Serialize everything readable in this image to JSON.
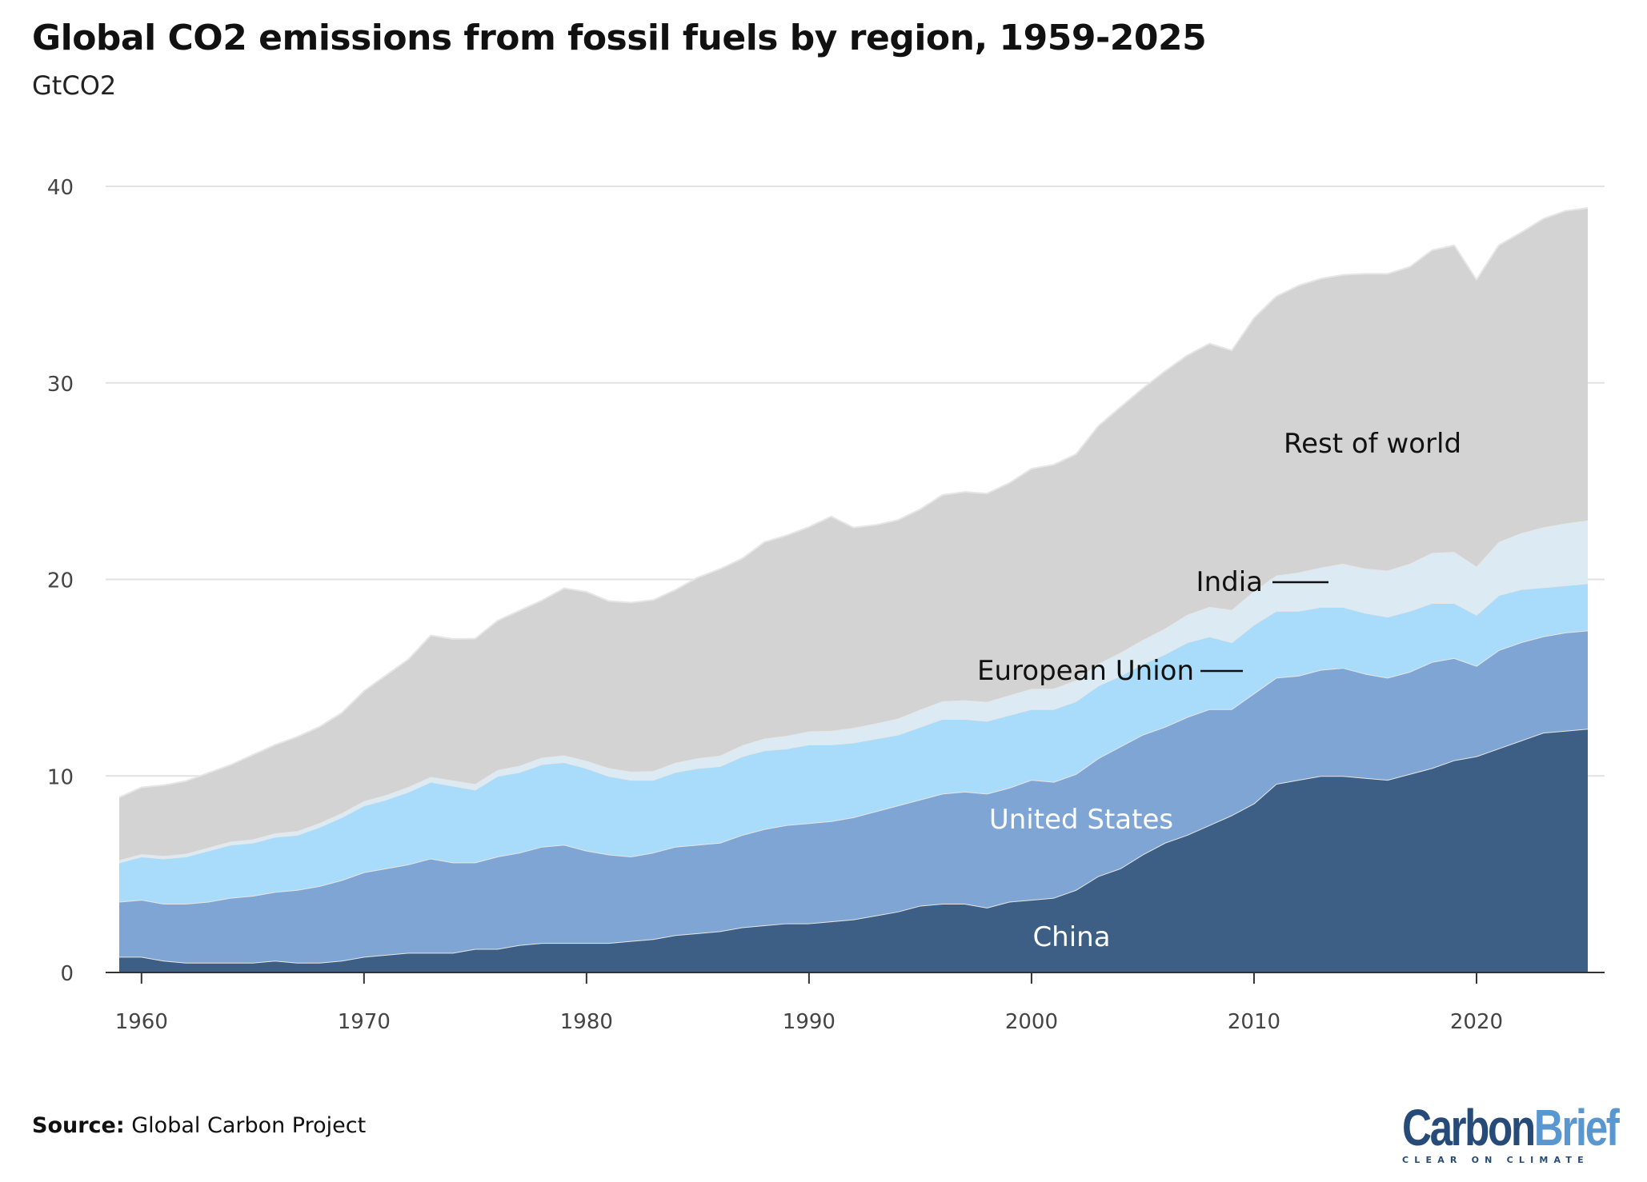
{
  "title": "Global CO2 emissions from fossil fuels by region, 1959-2025",
  "subtitle": "GtCO2",
  "source_label": "Source:",
  "source_text": "Global Carbon Project",
  "logo": {
    "part1": "Carbon",
    "part2": "Brief",
    "tagline": "CLEAR ON CLIMATE"
  },
  "chart_data": {
    "type": "area",
    "stacked": true,
    "title": "Global CO2 emissions from fossil fuels by region, 1959-2025",
    "ylabel": "GtCO2",
    "xlim": [
      1959,
      2025
    ],
    "ylim": [
      0,
      40
    ],
    "grid": true,
    "x_ticks": [
      1960,
      1970,
      1980,
      1990,
      2000,
      2010,
      2020
    ],
    "y_ticks": [
      0,
      10,
      20,
      30,
      40
    ],
    "legend": "inline labels",
    "x": [
      1959,
      1960,
      1961,
      1962,
      1963,
      1964,
      1965,
      1966,
      1967,
      1968,
      1969,
      1970,
      1971,
      1972,
      1973,
      1974,
      1975,
      1976,
      1977,
      1978,
      1979,
      1980,
      1981,
      1982,
      1983,
      1984,
      1985,
      1986,
      1987,
      1988,
      1989,
      1990,
      1991,
      1992,
      1993,
      1994,
      1995,
      1996,
      1997,
      1998,
      1999,
      2000,
      2001,
      2002,
      2003,
      2004,
      2005,
      2006,
      2007,
      2008,
      2009,
      2010,
      2011,
      2012,
      2013,
      2014,
      2015,
      2016,
      2017,
      2018,
      2019,
      2020,
      2021,
      2022,
      2023,
      2024,
      2025
    ],
    "series": [
      {
        "name": "China",
        "color": "#3d5f85",
        "label_color": "#ffffff",
        "values": [
          0.8,
          0.8,
          0.6,
          0.5,
          0.5,
          0.5,
          0.5,
          0.6,
          0.5,
          0.5,
          0.6,
          0.8,
          0.9,
          1.0,
          1.0,
          1.0,
          1.2,
          1.2,
          1.4,
          1.5,
          1.5,
          1.5,
          1.5,
          1.6,
          1.7,
          1.9,
          2.0,
          2.1,
          2.3,
          2.4,
          2.5,
          2.5,
          2.6,
          2.7,
          2.9,
          3.1,
          3.4,
          3.5,
          3.5,
          3.3,
          3.6,
          3.7,
          3.8,
          4.2,
          4.9,
          5.3,
          6.0,
          6.6,
          7.0,
          7.5,
          8.0,
          8.6,
          9.6,
          9.8,
          10.0,
          10.0,
          9.9,
          9.8,
          10.1,
          10.4,
          10.8,
          11.0,
          11.4,
          11.8,
          12.2,
          12.3,
          12.4
        ]
      },
      {
        "name": "United States",
        "color": "#7fa5d4",
        "label_color": "#ffffff",
        "values": [
          2.8,
          2.9,
          2.9,
          3.0,
          3.1,
          3.3,
          3.4,
          3.5,
          3.7,
          3.9,
          4.1,
          4.3,
          4.4,
          4.5,
          4.8,
          4.6,
          4.4,
          4.7,
          4.7,
          4.9,
          5.0,
          4.7,
          4.5,
          4.3,
          4.4,
          4.5,
          4.5,
          4.5,
          4.7,
          4.9,
          5.0,
          5.1,
          5.1,
          5.2,
          5.3,
          5.4,
          5.4,
          5.6,
          5.7,
          5.8,
          5.8,
          6.1,
          5.9,
          5.9,
          6.0,
          6.2,
          6.1,
          5.9,
          6.0,
          5.9,
          5.4,
          5.6,
          5.4,
          5.3,
          5.4,
          5.5,
          5.3,
          5.2,
          5.2,
          5.4,
          5.2,
          4.6,
          5.0,
          5.0,
          4.9,
          5.0,
          5.0
        ]
      },
      {
        "name": "European Union",
        "color": "#a8dcfa",
        "label_color": "#111111",
        "values": [
          2.0,
          2.2,
          2.3,
          2.4,
          2.6,
          2.7,
          2.7,
          2.8,
          2.8,
          3.0,
          3.2,
          3.4,
          3.5,
          3.7,
          3.9,
          3.9,
          3.7,
          4.1,
          4.1,
          4.2,
          4.2,
          4.2,
          4.0,
          3.9,
          3.7,
          3.8,
          3.9,
          3.9,
          4.0,
          4.0,
          3.9,
          4.0,
          3.9,
          3.8,
          3.7,
          3.6,
          3.7,
          3.8,
          3.7,
          3.7,
          3.7,
          3.6,
          3.7,
          3.7,
          3.7,
          3.6,
          3.6,
          3.7,
          3.8,
          3.7,
          3.4,
          3.5,
          3.4,
          3.3,
          3.2,
          3.1,
          3.1,
          3.1,
          3.1,
          3.0,
          2.8,
          2.6,
          2.8,
          2.7,
          2.5,
          2.4,
          2.4
        ]
      },
      {
        "name": "India",
        "color": "#dcebf3",
        "label_color": "#111111",
        "values": [
          0.11,
          0.12,
          0.13,
          0.14,
          0.15,
          0.16,
          0.17,
          0.18,
          0.19,
          0.2,
          0.21,
          0.22,
          0.23,
          0.24,
          0.25,
          0.27,
          0.29,
          0.3,
          0.32,
          0.33,
          0.35,
          0.37,
          0.4,
          0.42,
          0.45,
          0.47,
          0.5,
          0.53,
          0.56,
          0.6,
          0.64,
          0.67,
          0.7,
          0.74,
          0.77,
          0.82,
          0.87,
          0.9,
          0.95,
          0.97,
          1.0,
          1.03,
          1.04,
          1.07,
          1.1,
          1.17,
          1.22,
          1.3,
          1.4,
          1.5,
          1.65,
          1.7,
          1.8,
          1.95,
          2.0,
          2.2,
          2.25,
          2.35,
          2.4,
          2.55,
          2.6,
          2.45,
          2.7,
          2.85,
          3.05,
          3.15,
          3.2
        ]
      },
      {
        "name": "Rest of world",
        "color": "#d3d3d3",
        "label_color": "#111111",
        "values": [
          3.2,
          3.4,
          3.6,
          3.7,
          3.8,
          3.9,
          4.3,
          4.5,
          4.8,
          4.9,
          5.1,
          5.6,
          6.1,
          6.5,
          7.2,
          7.2,
          7.4,
          7.6,
          7.9,
          8.0,
          8.5,
          8.6,
          8.5,
          8.6,
          8.7,
          8.8,
          9.2,
          9.5,
          9.5,
          10.0,
          10.2,
          10.4,
          10.9,
          10.2,
          10.1,
          10.1,
          10.2,
          10.5,
          10.6,
          10.6,
          10.8,
          11.2,
          11.4,
          11.5,
          12.1,
          12.5,
          12.8,
          13.1,
          13.2,
          13.4,
          13.2,
          13.9,
          14.2,
          14.6,
          14.7,
          14.7,
          15.0,
          15.1,
          15.1,
          15.4,
          15.6,
          14.6,
          15.1,
          15.3,
          15.7,
          15.9,
          15.9
        ]
      }
    ]
  }
}
